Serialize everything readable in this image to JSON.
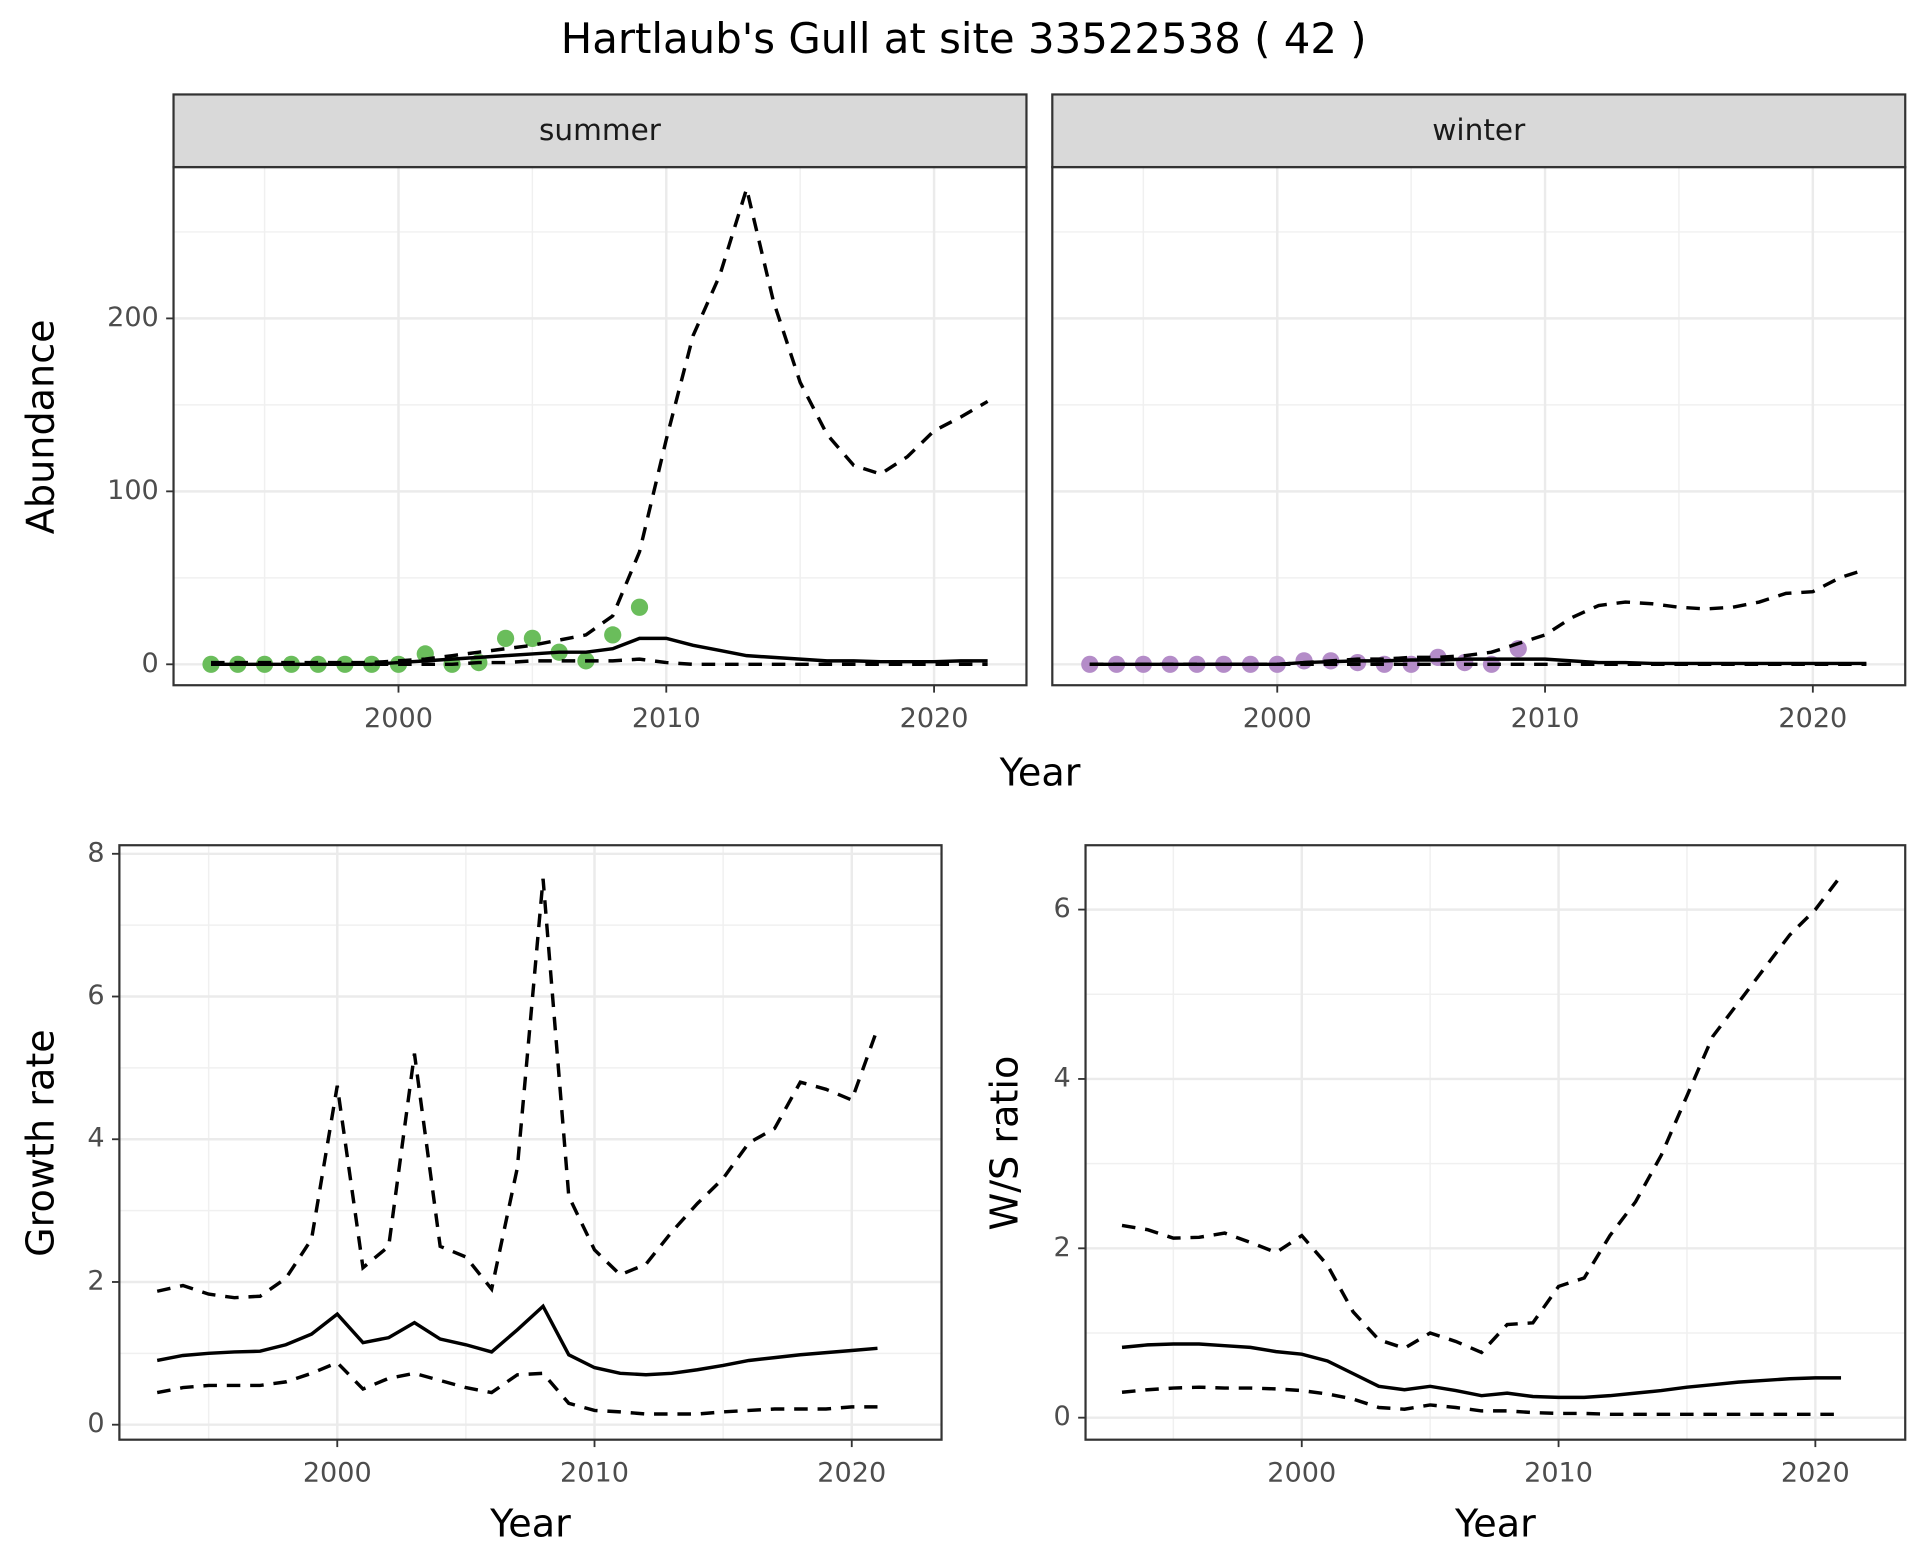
{
  "title": "Hartlaub's Gull at site 33522538 ( 42 )",
  "chart_data": [
    {
      "type": "line",
      "panel": "summer",
      "xlabel": "Year",
      "ylabel": "Abundance",
      "x": [
        1993,
        1994,
        1995,
        1996,
        1997,
        1998,
        1999,
        2000,
        2001,
        2002,
        2003,
        2004,
        2005,
        2006,
        2007,
        2008,
        2009,
        2010,
        2011,
        2012,
        2013,
        2014,
        2015,
        2016,
        2017,
        2018,
        2019,
        2020,
        2021,
        2022
      ],
      "xlim": [
        1991.6,
        2023.45
      ],
      "xticks": [
        2000,
        2010,
        2020
      ],
      "ylim": [
        -12.1,
        287.5
      ],
      "yticks": [
        0,
        100,
        200
      ],
      "grid": true,
      "ytick_labels": true,
      "series": [
        {
          "style": "points",
          "color": "#6abd5b",
          "values": [
            0,
            0,
            0,
            0,
            0,
            0,
            0,
            0,
            6,
            0,
            1,
            15,
            15,
            7,
            2,
            17,
            33,
            null,
            null,
            null,
            null,
            null,
            null,
            null,
            null,
            null,
            null,
            null,
            null,
            null
          ]
        },
        {
          "style": "solid",
          "color": "#000000",
          "values": [
            0,
            0,
            0,
            0,
            0,
            0,
            0,
            1,
            2,
            3,
            4,
            5,
            6,
            7,
            7,
            9,
            15,
            15,
            11,
            8,
            5,
            4,
            3,
            2,
            2,
            1.5,
            1.5,
            1.5,
            2,
            2
          ]
        },
        {
          "style": "dashed",
          "color": "#000000",
          "values": [
            1,
            1,
            1,
            1,
            1,
            1,
            1,
            2,
            3,
            5,
            7,
            9,
            11,
            14,
            17,
            28,
            65,
            130,
            190,
            225,
            275,
            210,
            163,
            133,
            115,
            110,
            120,
            135,
            143,
            152
          ]
        },
        {
          "style": "dashed",
          "color": "#000000",
          "values": [
            0,
            0,
            0,
            0,
            0,
            0,
            0,
            0,
            0,
            0,
            1,
            1,
            2,
            2,
            2,
            2,
            3,
            1,
            0,
            0,
            0,
            0,
            0,
            0,
            0,
            0,
            0,
            0,
            0,
            0
          ]
        }
      ]
    },
    {
      "type": "line",
      "panel": "winter",
      "x": [
        1993,
        1994,
        1995,
        1996,
        1997,
        1998,
        1999,
        2000,
        2001,
        2002,
        2003,
        2004,
        2005,
        2006,
        2007,
        2008,
        2009,
        2010,
        2011,
        2012,
        2013,
        2014,
        2015,
        2016,
        2017,
        2018,
        2019,
        2020,
        2021,
        2022
      ],
      "xlim": [
        1991.6,
        2023.45
      ],
      "xticks": [
        2000,
        2010,
        2020
      ],
      "ylim": [
        -12.1,
        287.5
      ],
      "yticks": [
        0,
        100,
        200
      ],
      "grid": true,
      "ytick_labels": false,
      "series": [
        {
          "style": "points",
          "color": "#b48cc8",
          "values": [
            0,
            0,
            0,
            0,
            0,
            0,
            0,
            0,
            2,
            2,
            1,
            0,
            0,
            4,
            1,
            0,
            9,
            null,
            null,
            null,
            null,
            null,
            null,
            null,
            null,
            null,
            null,
            null,
            null,
            null
          ]
        },
        {
          "style": "solid",
          "color": "#000000",
          "values": [
            0,
            0,
            0,
            0,
            0,
            0,
            0,
            0,
            1,
            1.5,
            2,
            2,
            2.5,
            2.5,
            3,
            3,
            3,
            3,
            2,
            1,
            1,
            0.5,
            0.5,
            0.5,
            0.5,
            0.5,
            0.5,
            0.5,
            0.5,
            0.5
          ]
        },
        {
          "style": "dashed",
          "color": "#000000",
          "values": [
            0,
            0,
            0,
            0,
            0,
            0,
            0,
            0,
            1,
            2,
            3,
            3,
            4,
            4,
            5,
            7,
            12,
            17,
            27,
            34,
            36,
            35,
            33,
            32,
            33,
            36,
            41,
            42,
            50,
            55
          ]
        },
        {
          "style": "dashed",
          "color": "#000000",
          "values": [
            0,
            0,
            0,
            0,
            0,
            0,
            0,
            0,
            0,
            0,
            0,
            0,
            0,
            0,
            0,
            0,
            0,
            0,
            0,
            0,
            0,
            0,
            0,
            0,
            0,
            0,
            0,
            0,
            0,
            0
          ]
        }
      ]
    },
    {
      "type": "line",
      "xlabel": "Year",
      "ylabel": "Growth rate",
      "x": [
        1993,
        1994,
        1995,
        1996,
        1997,
        1998,
        1999,
        2000,
        2001,
        2002,
        2003,
        2004,
        2005,
        2006,
        2007,
        2008,
        2009,
        2010,
        2011,
        2012,
        2013,
        2014,
        2015,
        2016,
        2017,
        2018,
        2019,
        2020,
        2021
      ],
      "xlim": [
        1991.53,
        2023.49
      ],
      "xticks": [
        2000,
        2010,
        2020
      ],
      "ylim": [
        -0.21,
        8.12
      ],
      "yticks": [
        0,
        2,
        4,
        6,
        8
      ],
      "grid": true,
      "ytick_labels": true,
      "series": [
        {
          "style": "solid",
          "color": "#000000",
          "values": [
            0.9,
            0.97,
            1.0,
            1.02,
            1.03,
            1.12,
            1.27,
            1.55,
            1.15,
            1.22,
            1.43,
            1.2,
            1.12,
            1.02,
            1.33,
            1.66,
            0.98,
            0.8,
            0.72,
            0.7,
            0.72,
            0.77,
            0.83,
            0.9,
            0.94,
            0.98,
            1.01,
            1.04,
            1.07
          ]
        },
        {
          "style": "dashed",
          "color": "#000000",
          "values": [
            1.87,
            1.95,
            1.83,
            1.78,
            1.8,
            2.05,
            2.6,
            4.75,
            2.2,
            2.5,
            5.2,
            2.5,
            2.35,
            1.9,
            3.6,
            7.65,
            3.2,
            2.45,
            2.1,
            2.25,
            2.7,
            3.1,
            3.45,
            3.95,
            4.15,
            4.8,
            4.7,
            4.55,
            5.55
          ]
        },
        {
          "style": "dashed",
          "color": "#000000",
          "values": [
            0.45,
            0.52,
            0.55,
            0.55,
            0.55,
            0.6,
            0.72,
            0.87,
            0.5,
            0.65,
            0.72,
            0.62,
            0.52,
            0.45,
            0.7,
            0.72,
            0.3,
            0.2,
            0.18,
            0.15,
            0.15,
            0.15,
            0.18,
            0.2,
            0.22,
            0.22,
            0.22,
            0.25,
            0.25
          ]
        }
      ]
    },
    {
      "type": "line",
      "xlabel": "Year",
      "ylabel": "W/S ratio",
      "x": [
        1993,
        1994,
        1995,
        1996,
        1997,
        1998,
        1999,
        2000,
        2001,
        2002,
        2003,
        2004,
        2005,
        2006,
        2007,
        2008,
        2009,
        2010,
        2011,
        2012,
        2013,
        2014,
        2015,
        2016,
        2017,
        2018,
        2019,
        2020,
        2021
      ],
      "xlim": [
        1991.58,
        2023.5
      ],
      "xticks": [
        2000,
        2010,
        2020
      ],
      "ylim": [
        -0.26,
        6.76
      ],
      "yticks": [
        0,
        2,
        4,
        6
      ],
      "grid": true,
      "ytick_labels": true,
      "series": [
        {
          "style": "solid",
          "color": "#000000",
          "values": [
            0.83,
            0.86,
            0.87,
            0.87,
            0.85,
            0.83,
            0.78,
            0.75,
            0.67,
            0.52,
            0.37,
            0.33,
            0.37,
            0.32,
            0.26,
            0.29,
            0.25,
            0.24,
            0.24,
            0.26,
            0.29,
            0.32,
            0.36,
            0.39,
            0.42,
            0.44,
            0.46,
            0.47,
            0.47
          ]
        },
        {
          "style": "dashed",
          "color": "#000000",
          "values": [
            2.27,
            2.22,
            2.12,
            2.13,
            2.18,
            2.07,
            1.95,
            2.15,
            1.8,
            1.25,
            0.92,
            0.82,
            1.0,
            0.9,
            0.77,
            1.1,
            1.12,
            1.55,
            1.65,
            2.15,
            2.55,
            3.1,
            3.8,
            4.5,
            4.9,
            5.3,
            5.7,
            6.0,
            6.4
          ]
        },
        {
          "style": "dashed",
          "color": "#000000",
          "values": [
            0.3,
            0.33,
            0.35,
            0.36,
            0.35,
            0.35,
            0.34,
            0.32,
            0.28,
            0.22,
            0.12,
            0.1,
            0.15,
            0.12,
            0.08,
            0.08,
            0.06,
            0.05,
            0.05,
            0.04,
            0.04,
            0.04,
            0.04,
            0.04,
            0.04,
            0.04,
            0.04,
            0.04,
            0.04
          ]
        }
      ]
    }
  ]
}
